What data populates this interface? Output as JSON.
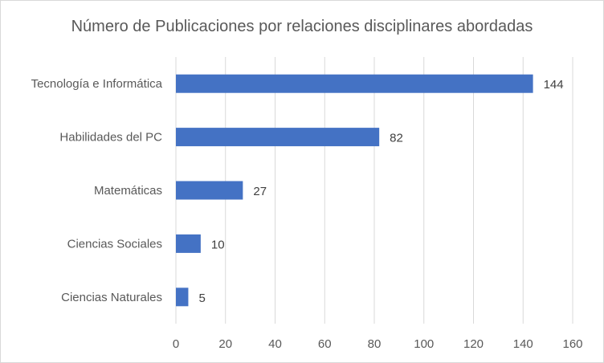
{
  "chart_data": {
    "type": "bar",
    "orientation": "horizontal",
    "title": "Número de Publicaciones por relaciones disciplinares abordadas",
    "xlabel": "",
    "ylabel": "",
    "categories": [
      "Tecnología e Informática",
      "Habilidades del PC",
      "Matemáticas",
      "Ciencias Sociales",
      "Ciencias Naturales"
    ],
    "values": [
      144,
      82,
      27,
      10,
      5
    ],
    "xlim": [
      0,
      160
    ],
    "ticks": [
      0,
      20,
      40,
      60,
      80,
      100,
      120,
      140,
      160
    ],
    "grid": true,
    "legend": "none",
    "data_labels": true,
    "colors": {
      "bar": "#4472c4",
      "grid": "#d9d9d9",
      "text": "#595959"
    }
  }
}
